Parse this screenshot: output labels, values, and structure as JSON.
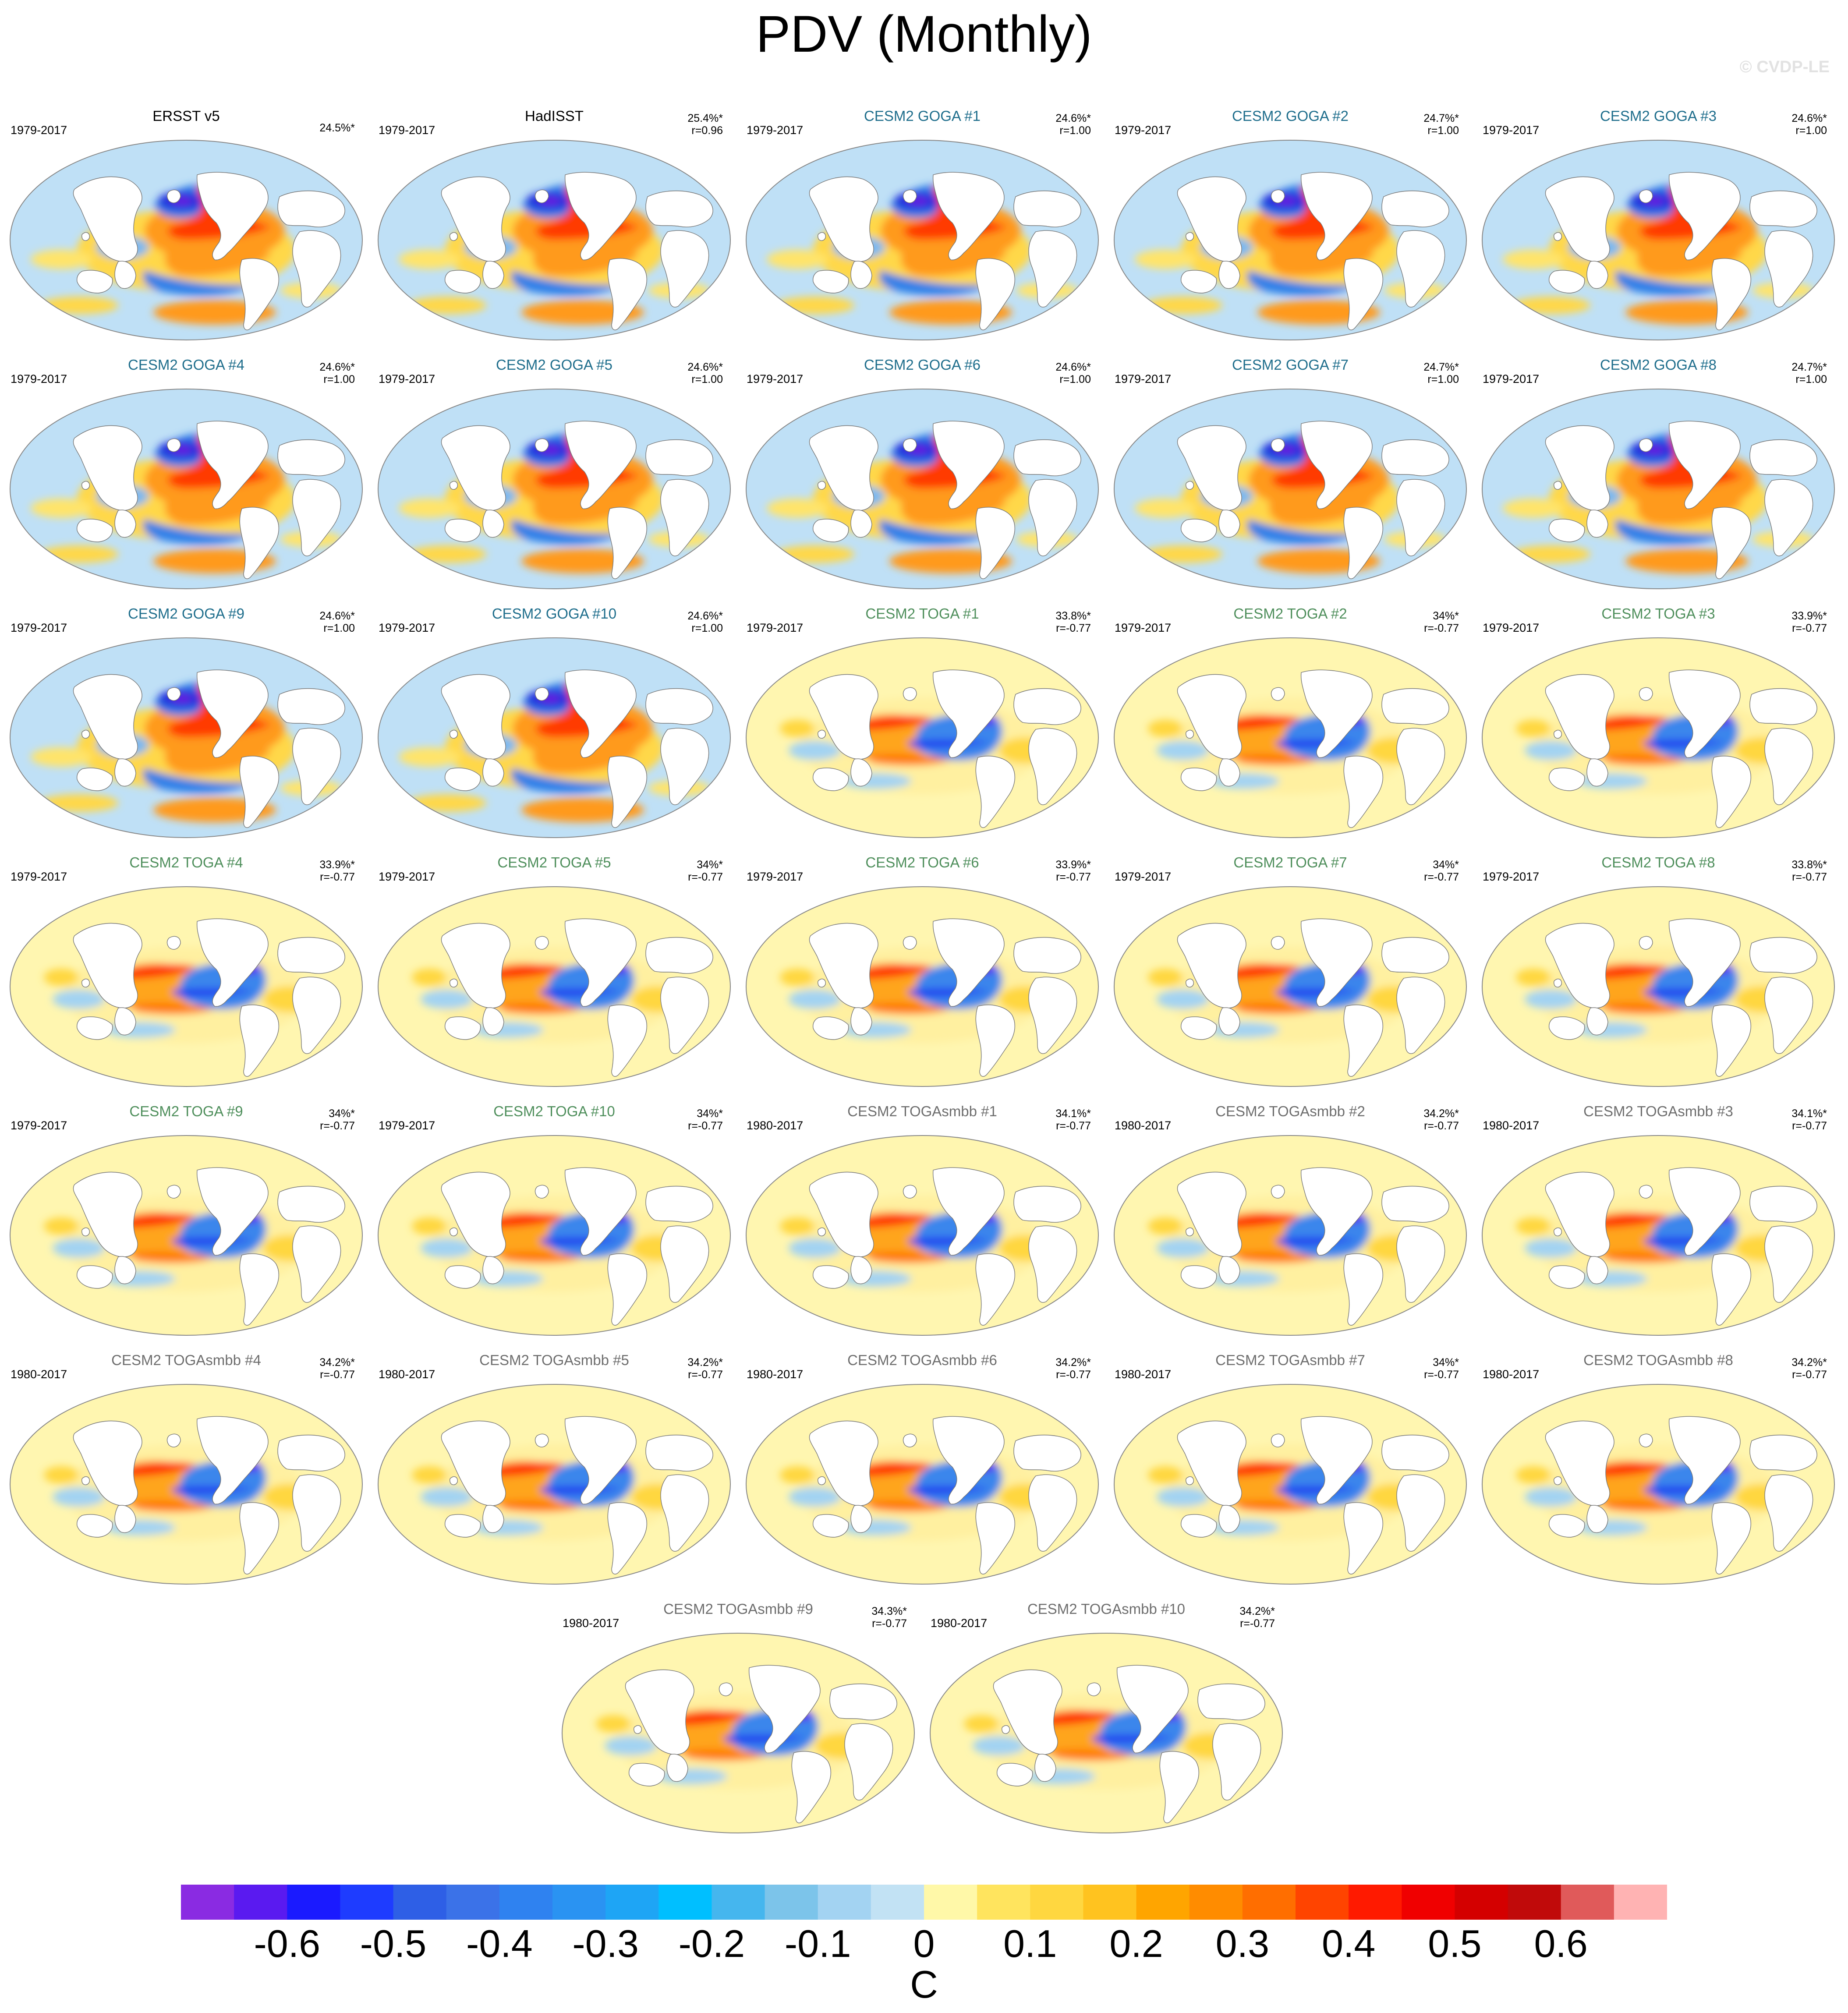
{
  "title": "PDV (Monthly)",
  "credit": "© CVDP-LE",
  "colors": {
    "goga_title": "#1f6e8c",
    "toga_title": "#4f8f5c",
    "togasmbb_title": "#6e6e6e",
    "obs_title": "#000000"
  },
  "panels": [
    {
      "title": "ERSST v5",
      "years": "1979-2017",
      "pct": "24.5%*",
      "r": "",
      "kind": "obs-ersst"
    },
    {
      "title": "HadISST",
      "years": "1979-2017",
      "pct": "25.4%*",
      "r": "r=0.96",
      "kind": "obs-hadisst"
    },
    {
      "title": "CESM2 GOGA #1",
      "years": "1979-2017",
      "pct": "24.6%*",
      "r": "r=1.00",
      "kind": "goga"
    },
    {
      "title": "CESM2 GOGA #2",
      "years": "1979-2017",
      "pct": "24.7%*",
      "r": "r=1.00",
      "kind": "goga"
    },
    {
      "title": "CESM2 GOGA #3",
      "years": "1979-2017",
      "pct": "24.6%*",
      "r": "r=1.00",
      "kind": "goga"
    },
    {
      "title": "CESM2 GOGA #4",
      "years": "1979-2017",
      "pct": "24.6%*",
      "r": "r=1.00",
      "kind": "goga"
    },
    {
      "title": "CESM2 GOGA #5",
      "years": "1979-2017",
      "pct": "24.6%*",
      "r": "r=1.00",
      "kind": "goga"
    },
    {
      "title": "CESM2 GOGA #6",
      "years": "1979-2017",
      "pct": "24.6%*",
      "r": "r=1.00",
      "kind": "goga"
    },
    {
      "title": "CESM2 GOGA #7",
      "years": "1979-2017",
      "pct": "24.7%*",
      "r": "r=1.00",
      "kind": "goga"
    },
    {
      "title": "CESM2 GOGA #8",
      "years": "1979-2017",
      "pct": "24.7%*",
      "r": "r=1.00",
      "kind": "goga"
    },
    {
      "title": "CESM2 GOGA #9",
      "years": "1979-2017",
      "pct": "24.6%*",
      "r": "r=1.00",
      "kind": "goga"
    },
    {
      "title": "CESM2 GOGA #10",
      "years": "1979-2017",
      "pct": "24.6%*",
      "r": "r=1.00",
      "kind": "goga"
    },
    {
      "title": "CESM2 TOGA #1",
      "years": "1979-2017",
      "pct": "33.8%*",
      "r": "r=-0.77",
      "kind": "toga"
    },
    {
      "title": "CESM2 TOGA #2",
      "years": "1979-2017",
      "pct": "34%*",
      "r": "r=-0.77",
      "kind": "toga"
    },
    {
      "title": "CESM2 TOGA #3",
      "years": "1979-2017",
      "pct": "33.9%*",
      "r": "r=-0.77",
      "kind": "toga"
    },
    {
      "title": "CESM2 TOGA #4",
      "years": "1979-2017",
      "pct": "33.9%*",
      "r": "r=-0.77",
      "kind": "toga"
    },
    {
      "title": "CESM2 TOGA #5",
      "years": "1979-2017",
      "pct": "34%*",
      "r": "r=-0.77",
      "kind": "toga"
    },
    {
      "title": "CESM2 TOGA #6",
      "years": "1979-2017",
      "pct": "33.9%*",
      "r": "r=-0.77",
      "kind": "toga"
    },
    {
      "title": "CESM2 TOGA #7",
      "years": "1979-2017",
      "pct": "34%*",
      "r": "r=-0.77",
      "kind": "toga"
    },
    {
      "title": "CESM2 TOGA #8",
      "years": "1979-2017",
      "pct": "33.8%*",
      "r": "r=-0.77",
      "kind": "toga"
    },
    {
      "title": "CESM2 TOGA #9",
      "years": "1979-2017",
      "pct": "34%*",
      "r": "r=-0.77",
      "kind": "toga"
    },
    {
      "title": "CESM2 TOGA #10",
      "years": "1979-2017",
      "pct": "34%*",
      "r": "r=-0.77",
      "kind": "toga"
    },
    {
      "title": "CESM2 TOGAsmbb #1",
      "years": "1980-2017",
      "pct": "34.1%*",
      "r": "r=-0.77",
      "kind": "togasmbb"
    },
    {
      "title": "CESM2 TOGAsmbb #2",
      "years": "1980-2017",
      "pct": "34.2%*",
      "r": "r=-0.77",
      "kind": "togasmbb"
    },
    {
      "title": "CESM2 TOGAsmbb #3",
      "years": "1980-2017",
      "pct": "34.1%*",
      "r": "r=-0.77",
      "kind": "togasmbb"
    },
    {
      "title": "CESM2 TOGAsmbb #4",
      "years": "1980-2017",
      "pct": "34.2%*",
      "r": "r=-0.77",
      "kind": "togasmbb"
    },
    {
      "title": "CESM2 TOGAsmbb #5",
      "years": "1980-2017",
      "pct": "34.2%*",
      "r": "r=-0.77",
      "kind": "togasmbb"
    },
    {
      "title": "CESM2 TOGAsmbb #6",
      "years": "1980-2017",
      "pct": "34.2%*",
      "r": "r=-0.77",
      "kind": "togasmbb"
    },
    {
      "title": "CESM2 TOGAsmbb #7",
      "years": "1980-2017",
      "pct": "34%*",
      "r": "r=-0.77",
      "kind": "togasmbb"
    },
    {
      "title": "CESM2 TOGAsmbb #8",
      "years": "1980-2017",
      "pct": "34.2%*",
      "r": "r=-0.77",
      "kind": "togasmbb"
    },
    {
      "title": "CESM2 TOGAsmbb #9",
      "years": "1980-2017",
      "pct": "34.3%*",
      "r": "r=-0.77",
      "kind": "togasmbb"
    },
    {
      "title": "CESM2 TOGAsmbb #10",
      "years": "1980-2017",
      "pct": "34.2%*",
      "r": "r=-0.77",
      "kind": "togasmbb"
    }
  ],
  "colorbar": {
    "unit": "C",
    "colors": [
      "#8a2be2",
      "#5a1af0",
      "#1a1aff",
      "#1e3cff",
      "#2e5fe6",
      "#3b72e8",
      "#2f82f0",
      "#2a93f2",
      "#1ea5f5",
      "#00bfff",
      "#45b6ee",
      "#7cc4ea",
      "#a3d3f2",
      "#c2e2f4",
      "#fff8a8",
      "#ffe45e",
      "#ffd740",
      "#ffc31f",
      "#ffa500",
      "#ff8c00",
      "#ff6e00",
      "#ff4400",
      "#ff1a00",
      "#f00000",
      "#d40000",
      "#c00a0a",
      "#e05a5a",
      "#ffb3b3"
    ],
    "tick_labels": [
      "-0.6",
      "-0.5",
      "-0.4",
      "-0.3",
      "-0.2",
      "-0.1",
      "0",
      "0.1",
      "0.2",
      "0.3",
      "0.4",
      "0.5",
      "0.6"
    ],
    "tick_values": [
      -0.6,
      -0.5,
      -0.4,
      -0.3,
      -0.2,
      -0.1,
      0,
      0.1,
      0.2,
      0.3,
      0.4,
      0.5,
      0.6
    ],
    "range": [
      -0.7,
      0.7
    ]
  }
}
